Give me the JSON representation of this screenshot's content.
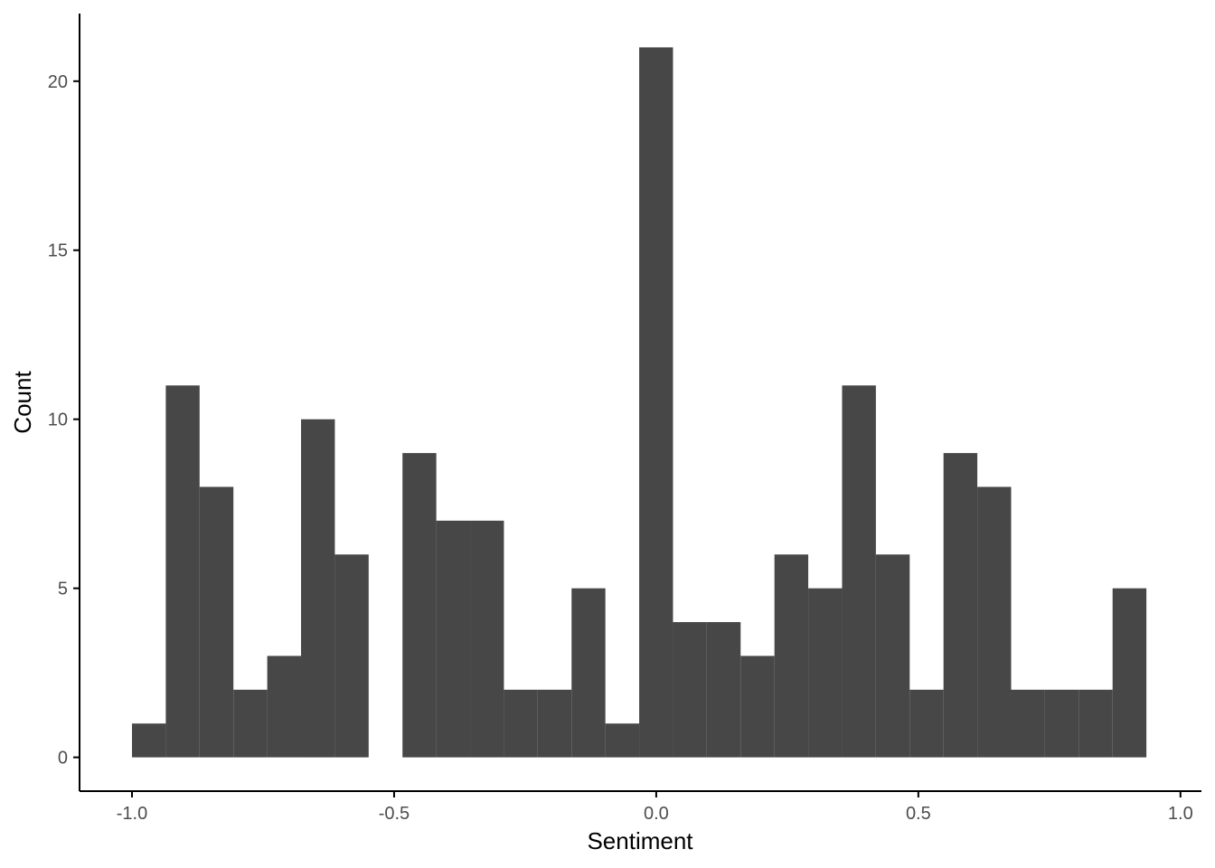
{
  "chart_data": {
    "type": "bar",
    "subtype": "histogram",
    "title": "",
    "xlabel": "Sentiment",
    "ylabel": "Count",
    "bin_width": 0.0645,
    "bins": [
      {
        "x0": -1.0,
        "x1": -0.9355,
        "count": 1
      },
      {
        "x0": -0.9355,
        "x1": -0.871,
        "count": 11
      },
      {
        "x0": -0.871,
        "x1": -0.8065,
        "count": 8
      },
      {
        "x0": -0.8065,
        "x1": -0.742,
        "count": 2
      },
      {
        "x0": -0.742,
        "x1": -0.6775,
        "count": 3
      },
      {
        "x0": -0.6775,
        "x1": -0.613,
        "count": 10
      },
      {
        "x0": -0.613,
        "x1": -0.5485,
        "count": 6
      },
      {
        "x0": -0.5485,
        "x1": -0.484,
        "count": 0
      },
      {
        "x0": -0.484,
        "x1": -0.4195,
        "count": 9
      },
      {
        "x0": -0.4195,
        "x1": -0.355,
        "count": 7
      },
      {
        "x0": -0.355,
        "x1": -0.2905,
        "count": 7
      },
      {
        "x0": -0.2905,
        "x1": -0.226,
        "count": 2
      },
      {
        "x0": -0.226,
        "x1": -0.1615,
        "count": 2
      },
      {
        "x0": -0.1615,
        "x1": -0.097,
        "count": 5
      },
      {
        "x0": -0.097,
        "x1": -0.0325,
        "count": 1
      },
      {
        "x0": -0.0325,
        "x1": 0.032,
        "count": 21
      },
      {
        "x0": 0.032,
        "x1": 0.0965,
        "count": 4
      },
      {
        "x0": 0.0965,
        "x1": 0.161,
        "count": 4
      },
      {
        "x0": 0.161,
        "x1": 0.2255,
        "count": 3
      },
      {
        "x0": 0.2255,
        "x1": 0.29,
        "count": 6
      },
      {
        "x0": 0.29,
        "x1": 0.3545,
        "count": 5
      },
      {
        "x0": 0.3545,
        "x1": 0.419,
        "count": 11
      },
      {
        "x0": 0.419,
        "x1": 0.4835,
        "count": 6
      },
      {
        "x0": 0.4835,
        "x1": 0.548,
        "count": 2
      },
      {
        "x0": 0.548,
        "x1": 0.6125,
        "count": 9
      },
      {
        "x0": 0.6125,
        "x1": 0.677,
        "count": 8
      },
      {
        "x0": 0.677,
        "x1": 0.7415,
        "count": 2
      },
      {
        "x0": 0.7415,
        "x1": 0.806,
        "count": 2
      },
      {
        "x0": 0.806,
        "x1": 0.8705,
        "count": 2
      },
      {
        "x0": 0.8705,
        "x1": 0.935,
        "count": 5
      }
    ],
    "x_ticks": [
      "-1.0",
      "-0.5",
      "0.0",
      "0.5",
      "1.0"
    ],
    "y_ticks": [
      "0",
      "5",
      "10",
      "15",
      "20"
    ],
    "xlim": [
      -1.1,
      1.04
    ],
    "ylim": [
      -1.0,
      22.0
    ],
    "grid": false,
    "legend": "none",
    "colors": {
      "bar": "#474747",
      "axis": "#000000",
      "tick_text": "#4d4d4d"
    }
  }
}
